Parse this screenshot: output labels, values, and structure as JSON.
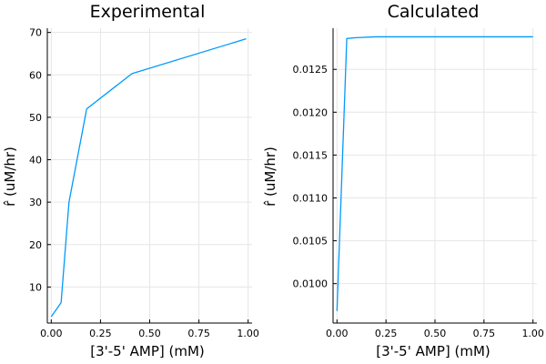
{
  "chart_data": [
    {
      "type": "line",
      "title": "Experimental",
      "xlabel": "[3'-5' AMP] (mM)",
      "ylabel": "r̂ (uM/hr)",
      "xlim": [
        -0.02,
        1.02
      ],
      "ylim": [
        1.5,
        71
      ],
      "xticks": [
        0.0,
        0.25,
        0.5,
        0.75,
        1.0
      ],
      "xtick_labels": [
        "0.00",
        "0.25",
        "0.50",
        "0.75",
        "1.00"
      ],
      "yticks": [
        10,
        20,
        30,
        40,
        50,
        60,
        70
      ],
      "ytick_labels": [
        "10",
        "20",
        "30",
        "40",
        "50",
        "60",
        "70"
      ],
      "grid": true,
      "legend": "none",
      "series": [
        {
          "color": "#009AFA",
          "x": [
            0.0,
            0.05,
            0.09,
            0.18,
            0.41,
            0.99
          ],
          "y": [
            3.0,
            6.3,
            30.0,
            52.0,
            60.3,
            68.5
          ]
        }
      ]
    },
    {
      "type": "line",
      "title": "Calculated",
      "xlabel": "[3'-5' AMP] (mM)",
      "ylabel": "r̂ (uM/hr)",
      "xlim": [
        -0.02,
        1.02
      ],
      "ylim": [
        0.00954,
        0.01298
      ],
      "xticks": [
        0.0,
        0.25,
        0.5,
        0.75,
        1.0
      ],
      "xtick_labels": [
        "0.00",
        "0.25",
        "0.50",
        "0.75",
        "1.00"
      ],
      "yticks": [
        0.01,
        0.0105,
        0.011,
        0.0115,
        0.012,
        0.0125
      ],
      "ytick_labels": [
        "0.0100",
        "0.0105",
        "0.0110",
        "0.0115",
        "0.0120",
        "0.0125"
      ],
      "grid": true,
      "legend": "none",
      "series": [
        {
          "color": "#009AFA",
          "x": [
            0.0,
            0.05,
            0.1,
            0.2,
            0.4,
            0.6,
            0.8,
            1.0
          ],
          "y": [
            0.00968,
            0.01286,
            0.01287,
            0.01288,
            0.01288,
            0.01288,
            0.01288,
            0.01288
          ]
        }
      ]
    }
  ]
}
